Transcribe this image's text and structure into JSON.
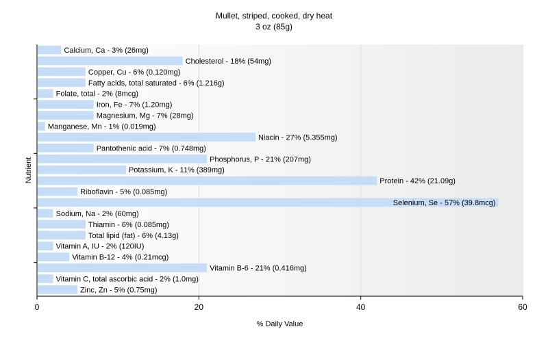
{
  "chart_data": {
    "type": "bar",
    "orientation": "horizontal",
    "title": "Mullet, striped, cooked, dry heat",
    "subtitle": "3 oz (85g)",
    "xlabel": "% Daily Value",
    "ylabel": "Nutrient",
    "xlim": [
      0,
      60
    ],
    "xticks": [
      0,
      20,
      40,
      60
    ],
    "bar_color": "#c6dcf7",
    "grid": true,
    "categories": [
      "Calcium, Ca - 3% (26mg)",
      "Cholesterol - 18% (54mg)",
      "Copper, Cu - 6% (0.120mg)",
      "Fatty acids, total saturated - 6% (1.216g)",
      "Folate, total - 2% (8mcg)",
      "Iron, Fe - 7% (1.20mg)",
      "Magnesium, Mg - 7% (28mg)",
      "Manganese, Mn - 1% (0.019mg)",
      "Niacin - 27% (5.355mg)",
      "Pantothenic acid - 7% (0.748mg)",
      "Phosphorus, P - 21% (207mg)",
      "Potassium, K - 11% (389mg)",
      "Protein - 42% (21.09g)",
      "Riboflavin - 5% (0.085mg)",
      "Selenium, Se - 57% (39.8mcg)",
      "Sodium, Na - 2% (60mg)",
      "Thiamin - 6% (0.085mg)",
      "Total lipid (fat) - 6% (4.13g)",
      "Vitamin A, IU - 2% (120IU)",
      "Vitamin B-12 - 4% (0.21mcg)",
      "Vitamin B-6 - 21% (0.416mg)",
      "Vitamin C, total ascorbic acid - 2% (1.0mg)",
      "Zinc, Zn - 5% (0.75mg)"
    ],
    "values": [
      3,
      18,
      6,
      6,
      2,
      7,
      7,
      1,
      27,
      7,
      21,
      11,
      42,
      5,
      57,
      2,
      6,
      6,
      2,
      4,
      21,
      2,
      5
    ]
  }
}
